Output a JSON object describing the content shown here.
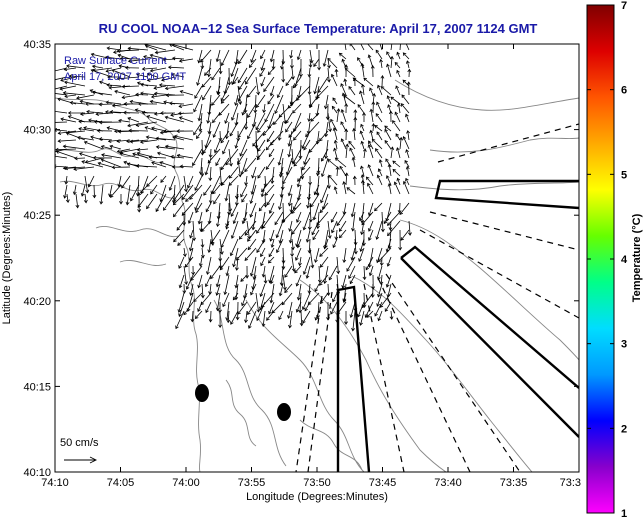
{
  "title": "RU COOL  NOAA−12  Sea Surface Temperature:  April 17, 2007 1124 GMT",
  "annotation": {
    "line1": "Raw Surface Current",
    "line2": "April 17, 2007 1100 GMT"
  },
  "x_axis": {
    "label": "Longitude (Degrees:Minutes)",
    "ticks": [
      "74:10",
      "74:05",
      "74:00",
      "73:55",
      "73:50",
      "73:45",
      "73:40",
      "73:35",
      "73:3"
    ]
  },
  "y_axis": {
    "label": "Latitude (Degrees:Minutes)",
    "ticks": [
      "40:35",
      "40:30",
      "40:25",
      "40:20",
      "40:15",
      "40:10"
    ]
  },
  "scale_bar": {
    "label": "50 cm/s"
  },
  "colorbar": {
    "label": "Temperature (°C)",
    "ticks": [
      "7",
      "6",
      "5",
      "4",
      "3",
      "2",
      "1"
    ],
    "colors": [
      "#ff00ff",
      "#8800cc",
      "#0000ff",
      "#0099ff",
      "#00ddff",
      "#00ff88",
      "#66ff00",
      "#ffff00",
      "#ffaa00",
      "#ff5500",
      "#dd0000",
      "#800000"
    ]
  },
  "colors": {
    "title": "#1a1aa8",
    "land_contour": "#888888",
    "frame": "#000000"
  }
}
